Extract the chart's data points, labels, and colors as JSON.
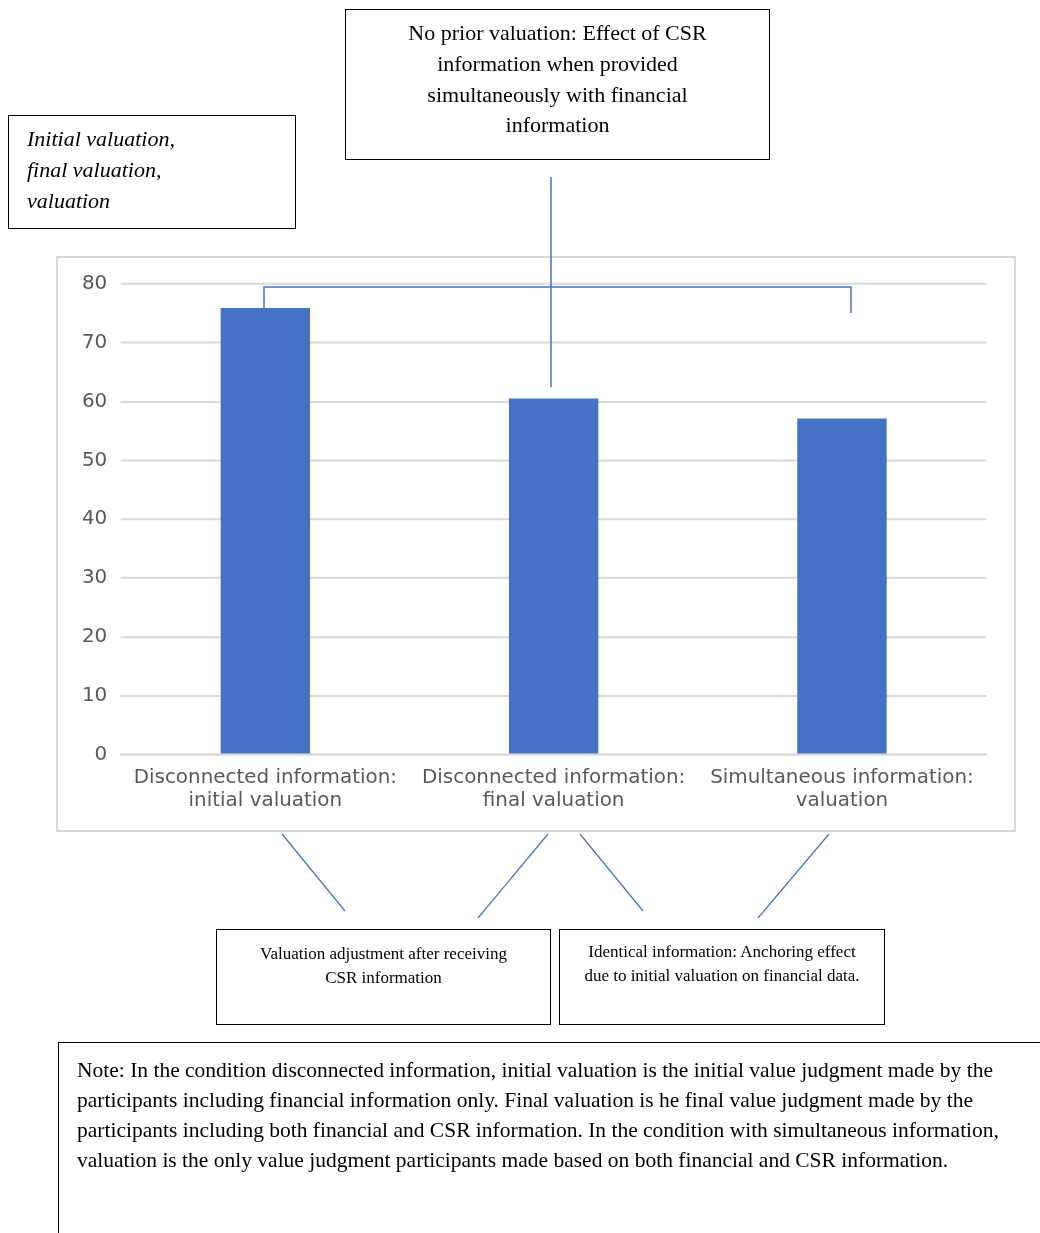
{
  "chart_data": {
    "type": "bar",
    "categories": [
      "Disconnected information: initial valuation",
      "Disconnected information: final valuation",
      "Simultaneous information: valuation"
    ],
    "values": [
      75.9,
      60.5,
      57.1
    ],
    "color": "#4472c4",
    "ylim": [
      0,
      80
    ],
    "yticks": [
      0,
      10,
      20,
      30,
      40,
      50,
      60,
      70,
      80
    ],
    "grid": "y",
    "annotations": [
      "Initial valuation, final valuation, valuation",
      "No prior valuation: Effect of CSR information when provided simultaneously with financial information",
      "Valuation adjustment after receiving CSR information",
      "Identical information: Anchoring effect due to initial valuation on financial data.",
      "Note: In the condition disconnected information, initial valuation is the initial value judgment made by the participants including financial information only. Final valuation is he final value judgment made by the participants including both financial and CSR information. In the condition with simultaneous information, valuation is the only value judgment participants made based on both financial and CSR information."
    ]
  }
}
